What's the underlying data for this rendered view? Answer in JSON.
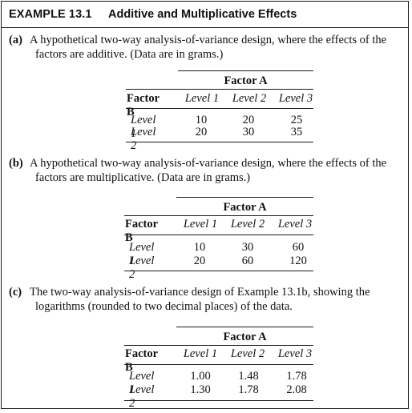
{
  "example": {
    "number": "EXAMPLE 13.1",
    "title": "Additive and Multiplicative Effects"
  },
  "parts": [
    {
      "tag": "(a)",
      "text_line1": "A hypothetical two-way analysis-of-variance design, where the effects of the",
      "text_line2": "factors are additive. (Data are in grams.)",
      "table": {
        "factor_a_label": "Factor A",
        "factor_b_label": "Factor B",
        "columns": [
          "Level 1",
          "Level 2",
          "Level 3"
        ],
        "rows": [
          {
            "label": "Level 1",
            "values": [
              "10",
              "20",
              "25"
            ]
          },
          {
            "label": "Level 2",
            "values": [
              "20",
              "30",
              "35"
            ]
          }
        ]
      }
    },
    {
      "tag": "(b)",
      "text_line1": "A hypothetical two-way analysis-of-variance design, where the effects of the",
      "text_line2": "factors are multiplicative. (Data are in grams.)",
      "table": {
        "factor_a_label": "Factor A",
        "factor_b_label": "Factor B",
        "columns": [
          "Level 1",
          "Level 2",
          "Level 3"
        ],
        "rows": [
          {
            "label": "Level 1",
            "values": [
              "10",
              "30",
              "60"
            ]
          },
          {
            "label": "Level 2",
            "values": [
              "20",
              "60",
              "120"
            ]
          }
        ]
      }
    },
    {
      "tag": "(c)",
      "text_line1": "The two-way analysis-of-variance design of Example 13.1b, showing the",
      "text_line2": "logarithms (rounded to two decimal places) of the data.",
      "table": {
        "factor_a_label": "Factor A",
        "factor_b_label": "Factor B",
        "columns": [
          "Level 1",
          "Level 2",
          "Level 3"
        ],
        "rows": [
          {
            "label": "Level 1",
            "values": [
              "1.00",
              "1.48",
              "1.78"
            ]
          },
          {
            "label": "Level 2",
            "values": [
              "1.30",
              "1.78",
              "2.08"
            ]
          }
        ]
      }
    }
  ]
}
